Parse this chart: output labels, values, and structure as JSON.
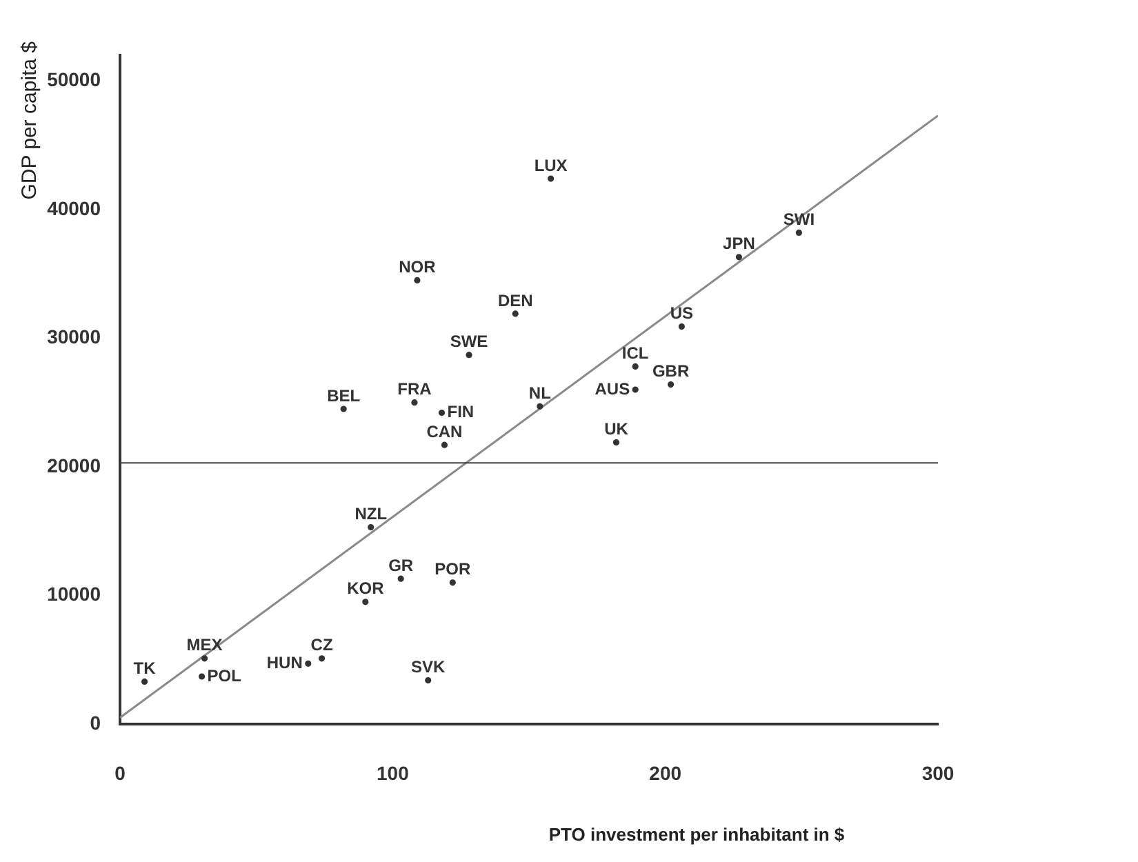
{
  "chart_data": {
    "type": "scatter",
    "xlabel": "PTO investment per inhabitant in $",
    "ylabel": "GDP per capita $",
    "xlim": [
      0,
      300
    ],
    "ylim": [
      0,
      52000
    ],
    "xticks": [
      0,
      100,
      200,
      300
    ],
    "yticks": [
      0,
      10000,
      20000,
      30000,
      40000,
      50000
    ],
    "grid": false,
    "legend": false,
    "marker": "circle",
    "ref_lines": [
      {
        "axis": "y",
        "value": 20300,
        "color": "#404040"
      }
    ],
    "series": [
      {
        "name": "LUX",
        "color": "#333333",
        "x": [
          158
        ],
        "values": [
          42400
        ]
      },
      {
        "name": "SWI",
        "color": "#333333",
        "x": [
          249
        ],
        "values": [
          38200
        ]
      },
      {
        "name": "JPN",
        "color": "#333333",
        "x": [
          227
        ],
        "values": [
          36300
        ]
      },
      {
        "name": "NOR",
        "color": "#333333",
        "x": [
          109
        ],
        "values": [
          34500
        ]
      },
      {
        "name": "DEN",
        "color": "#333333",
        "x": [
          145
        ],
        "values": [
          31900
        ]
      },
      {
        "name": "US",
        "color": "#333333",
        "x": [
          206
        ],
        "values": [
          30900
        ]
      },
      {
        "name": "SWE",
        "color": "#333333",
        "x": [
          128
        ],
        "values": [
          28700
        ]
      },
      {
        "name": "ICL",
        "color": "#333333",
        "x": [
          189
        ],
        "values": [
          27800
        ]
      },
      {
        "name": "GBR",
        "color": "#333333",
        "x": [
          202
        ],
        "values": [
          26400
        ]
      },
      {
        "name": "AUS",
        "color": "#333333",
        "x": [
          189
        ],
        "values": [
          26000
        ]
      },
      {
        "name": "NL",
        "color": "#333333",
        "x": [
          154
        ],
        "values": [
          24700
        ]
      },
      {
        "name": "FRA",
        "color": "#333333",
        "x": [
          108
        ],
        "values": [
          25000
        ]
      },
      {
        "name": "FIN",
        "color": "#333333",
        "x": [
          118
        ],
        "values": [
          24200
        ]
      },
      {
        "name": "BEL",
        "color": "#333333",
        "x": [
          82
        ],
        "values": [
          24500
        ]
      },
      {
        "name": "CAN",
        "color": "#333333",
        "x": [
          119
        ],
        "values": [
          21700
        ]
      },
      {
        "name": "UK",
        "color": "#333333",
        "x": [
          182
        ],
        "values": [
          21900
        ]
      },
      {
        "name": "NZL",
        "color": "#333333",
        "x": [
          92
        ],
        "values": [
          15300
        ]
      },
      {
        "name": "GR",
        "color": "#333333",
        "x": [
          103
        ],
        "values": [
          11300
        ]
      },
      {
        "name": "POR",
        "color": "#333333",
        "x": [
          122
        ],
        "values": [
          11000
        ]
      },
      {
        "name": "KOR",
        "color": "#333333",
        "x": [
          90
        ],
        "values": [
          9500
        ]
      },
      {
        "name": "CZ",
        "color": "#333333",
        "x": [
          74
        ],
        "values": [
          5100
        ]
      },
      {
        "name": "HUN",
        "color": "#333333",
        "x": [
          69
        ],
        "values": [
          4700
        ]
      },
      {
        "name": "MEX",
        "color": "#333333",
        "x": [
          31
        ],
        "values": [
          5100
        ]
      },
      {
        "name": "POL",
        "color": "#333333",
        "x": [
          30
        ],
        "values": [
          3700
        ]
      },
      {
        "name": "TK",
        "color": "#333333",
        "x": [
          9
        ],
        "values": [
          3300
        ]
      },
      {
        "name": "SVK",
        "color": "#333333",
        "x": [
          113
        ],
        "values": [
          3400
        ]
      },
      {
        "type": "line",
        "marker": "none",
        "color": "#8a8a8a",
        "x": [
          0,
          300
        ],
        "values": [
          500,
          47300
        ]
      }
    ]
  }
}
